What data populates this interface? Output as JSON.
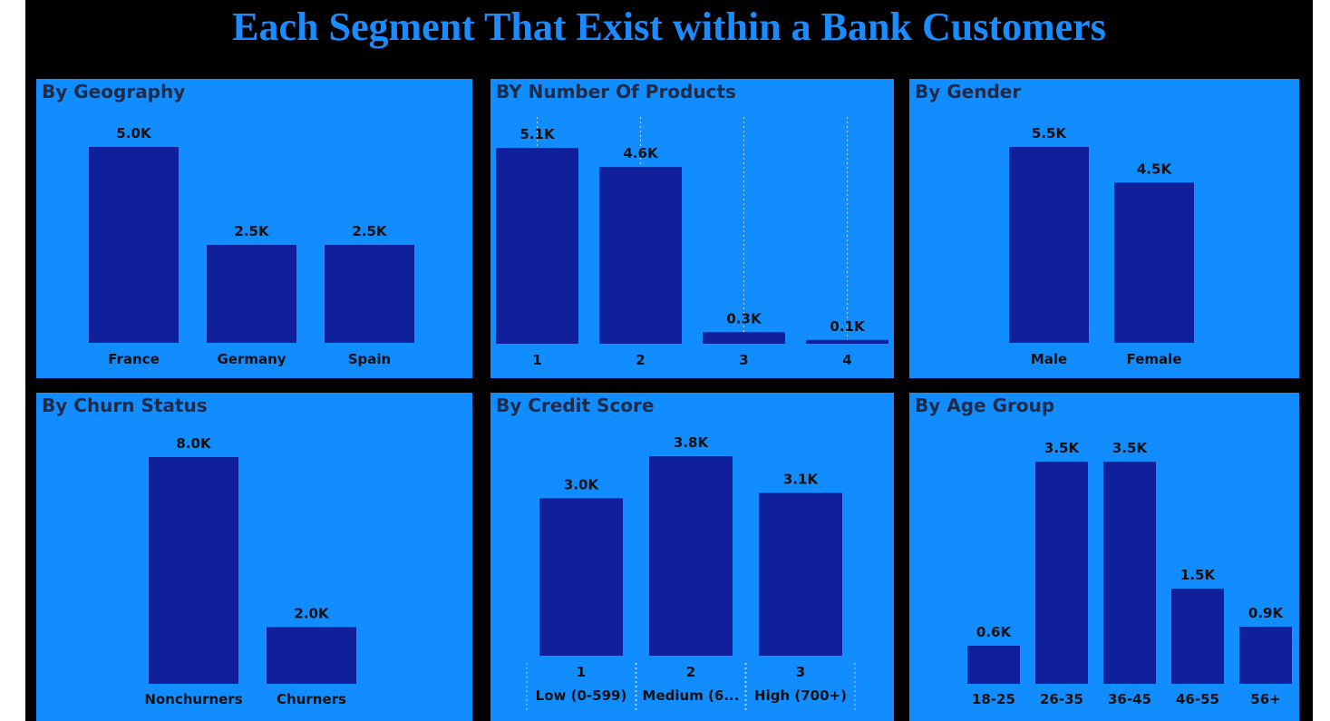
{
  "page": {
    "title": "Each Segment That Exist within a Bank Customers"
  },
  "chart_data": [
    {
      "id": "geography",
      "type": "bar",
      "title": "By Geography",
      "categories": [
        "France",
        "Germany",
        "Spain"
      ],
      "values": [
        5.0,
        2.5,
        2.5
      ],
      "data_labels": [
        "5.0K",
        "2.5K",
        "2.5K"
      ],
      "ylim": [
        0,
        5.0
      ],
      "grid": false,
      "colors": {
        "bar": "#0f209a",
        "background": "#118dff"
      }
    },
    {
      "id": "products",
      "type": "bar",
      "title": "BY Number Of Products",
      "categories": [
        "1",
        "2",
        "3",
        "4"
      ],
      "values": [
        5.1,
        4.6,
        0.3,
        0.1
      ],
      "data_labels": [
        "5.1K",
        "4.6K",
        "0.3K",
        "0.1K"
      ],
      "ylim": [
        0,
        5.1
      ],
      "grid": true,
      "colors": {
        "bar": "#0f209a",
        "background": "#118dff"
      }
    },
    {
      "id": "gender",
      "type": "bar",
      "title": "By Gender",
      "categories": [
        "Male",
        "Female"
      ],
      "values": [
        5.5,
        4.5
      ],
      "data_labels": [
        "5.5K",
        "4.5K"
      ],
      "ylim": [
        0,
        5.5
      ],
      "grid": false,
      "colors": {
        "bar": "#0f209a",
        "background": "#118dff"
      }
    },
    {
      "id": "churn",
      "type": "bar",
      "title": "By Churn Status",
      "categories": [
        "Nonchurners",
        "Churners"
      ],
      "values": [
        8.0,
        2.0
      ],
      "data_labels": [
        "8.0K",
        "2.0K"
      ],
      "ylim": [
        0,
        8.0
      ],
      "grid": false,
      "colors": {
        "bar": "#0f209a",
        "background": "#118dff"
      }
    },
    {
      "id": "credit",
      "type": "bar",
      "title": "By Credit Score",
      "categories": [
        "1",
        "2",
        "3"
      ],
      "sub_categories": [
        "Low (0-599)",
        "Medium (6...",
        "High (700+)"
      ],
      "values": [
        3.0,
        3.8,
        3.1
      ],
      "data_labels": [
        "3.0K",
        "3.8K",
        "3.1K"
      ],
      "ylim": [
        0,
        3.8
      ],
      "grid": true,
      "colors": {
        "bar": "#0f209a",
        "background": "#118dff"
      }
    },
    {
      "id": "age",
      "type": "bar",
      "title": "By Age Group",
      "categories": [
        "18-25",
        "26-35",
        "36-45",
        "46-55",
        "56+"
      ],
      "values": [
        0.6,
        3.5,
        3.5,
        1.5,
        0.9
      ],
      "data_labels": [
        "0.6K",
        "3.5K",
        "3.5K",
        "1.5K",
        "0.9K"
      ],
      "ylim": [
        0,
        3.5
      ],
      "grid": false,
      "colors": {
        "bar": "#0f209a",
        "background": "#118dff"
      }
    }
  ]
}
